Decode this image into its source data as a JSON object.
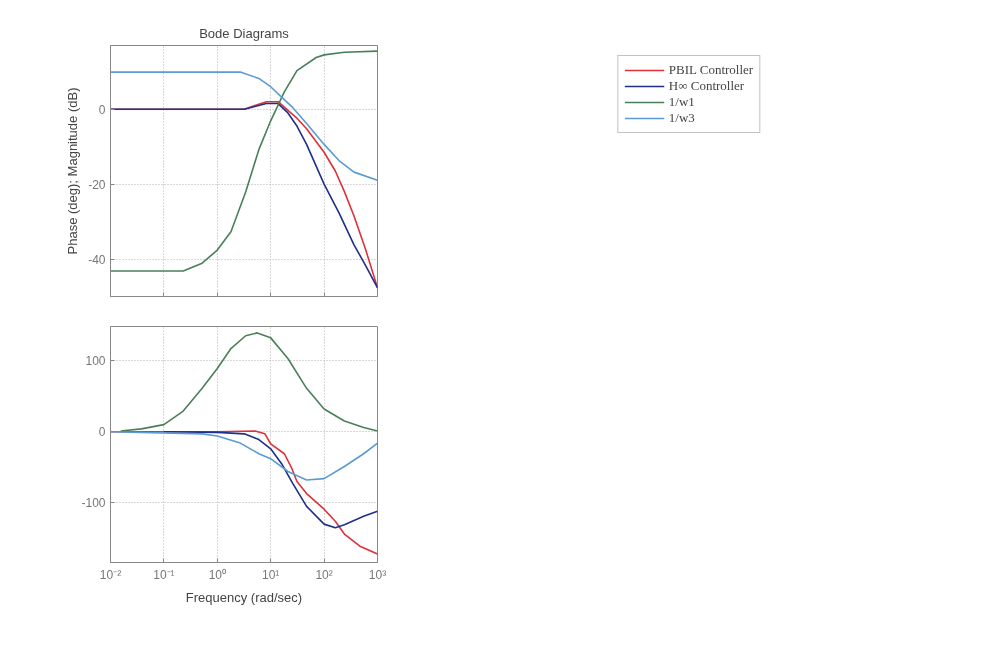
{
  "chart_data": [
    {
      "type": "line",
      "title": "Bode Diagrams",
      "ylabel": "Phase (deg); Magnitude (dB)",
      "log": "x",
      "grid": true,
      "legend": "right",
      "tick_labels": "y",
      "xlim": [
        0.01,
        1000
      ],
      "xticks": [
        {
          "value": 0.01,
          "label": null
        },
        {
          "value": 0.1,
          "label": null
        },
        {
          "value": 1,
          "label": null
        },
        {
          "value": 10,
          "label": null
        },
        {
          "value": 100,
          "label": null
        },
        {
          "value": 1000,
          "label": null
        }
      ],
      "ylim": [
        -50,
        17
      ],
      "yticks": [
        -40,
        -20,
        0
      ],
      "series": [
        {
          "name": "PBIL Controller",
          "color": "#e0303a",
          "x": [
            0.01,
            1,
            3.2,
            8.3,
            13.8,
            21,
            31,
            47,
            100,
            162,
            240,
            363,
            603,
            1000
          ],
          "values": [
            0,
            0,
            0,
            2,
            2,
            -0.3,
            -2.4,
            -5.2,
            -11.5,
            -16.5,
            -22,
            -28.5,
            -37.6,
            -47.7
          ]
        },
        {
          "name": "H∞ Controller",
          "color": "#1f2f8a",
          "x": [
            0.01,
            1,
            3.2,
            8.3,
            13.8,
            21,
            31,
            47,
            100,
            190,
            363,
            603,
            1000
          ],
          "values": [
            0,
            0,
            0,
            1.5,
            1.5,
            -1,
            -4.5,
            -9.4,
            -20,
            -27.7,
            -36.2,
            -41.8,
            -47.7
          ]
        },
        {
          "name": "1/w1",
          "color": "#4a7f5a",
          "x": [
            0.01,
            0.23,
            0.52,
            1,
            1.8,
            3.4,
            6,
            10,
            18,
            31,
            71,
            100,
            240,
            1000
          ],
          "values": [
            -43.2,
            -43.2,
            -41.1,
            -37.6,
            -32.7,
            -22.1,
            -10.8,
            -3.1,
            4.6,
            10.3,
            13.8,
            14.5,
            15.2,
            15.5
          ]
        },
        {
          "name": "1/w3",
          "color": "#5b9bd5",
          "x": [
            0.01,
            2.7,
            6,
            10,
            16,
            26,
            47,
            100,
            190,
            363,
            1000
          ],
          "values": [
            9.9,
            9.9,
            8.2,
            6,
            3.2,
            0.4,
            -3.8,
            -9.4,
            -13.7,
            -16.8,
            -19
          ]
        }
      ]
    },
    {
      "type": "line",
      "xlabel": "Frequency (rad/sec)",
      "log": "x",
      "grid": true,
      "xlim": [
        0.01,
        1000
      ],
      "xticks": [
        {
          "value": 0.01,
          "label": "10⁻²"
        },
        {
          "value": 0.1,
          "label": "10⁻¹"
        },
        {
          "value": 1,
          "label": "10⁰"
        },
        {
          "value": 10,
          "label": "10¹"
        },
        {
          "value": 100,
          "label": "10²"
        },
        {
          "value": 1000,
          "label": "10³"
        }
      ],
      "ylim": [
        -184,
        148
      ],
      "yticks": [
        -100,
        0,
        100
      ],
      "series": [
        {
          "color": "#e0303a",
          "x": [
            0.01,
            1,
            5.1,
            7.8,
            10,
            18,
            25,
            31,
            47,
            100,
            162,
            240,
            468,
            1000
          ],
          "values": [
            0,
            0,
            1,
            -3,
            -17,
            -31,
            -52,
            -70,
            -87,
            -109,
            -126,
            -144,
            -161,
            -172
          ]
        },
        {
          "color": "#1f2f8a",
          "x": [
            0.1,
            1,
            3.2,
            6,
            10,
            16,
            26,
            47,
            100,
            162,
            240,
            550,
            1000
          ],
          "values": [
            0,
            -1,
            -3,
            -11,
            -24,
            -45,
            -73,
            -105,
            -130,
            -135,
            -131,
            -119,
            -112
          ]
        },
        {
          "color": "#4a7f5a",
          "x": [
            0.0155,
            0.038,
            0.1,
            0.23,
            0.52,
            1,
            1.8,
            3.4,
            5.6,
            10,
            21,
            47,
            100,
            240,
            550,
            1000
          ],
          "values": [
            1,
            4,
            10,
            29,
            61,
            89,
            117,
            135,
            139,
            132,
            103,
            61,
            32,
            15,
            6,
            1
          ]
        },
        {
          "color": "#5b9bd5",
          "x": [
            0.01,
            0.52,
            1,
            2.7,
            6,
            10,
            21,
            47,
            100,
            240,
            550,
            1000
          ],
          "values": [
            0,
            -3,
            -6,
            -16,
            -31,
            -38,
            -56,
            -68,
            -66,
            -49,
            -31,
            -16
          ]
        }
      ]
    }
  ]
}
